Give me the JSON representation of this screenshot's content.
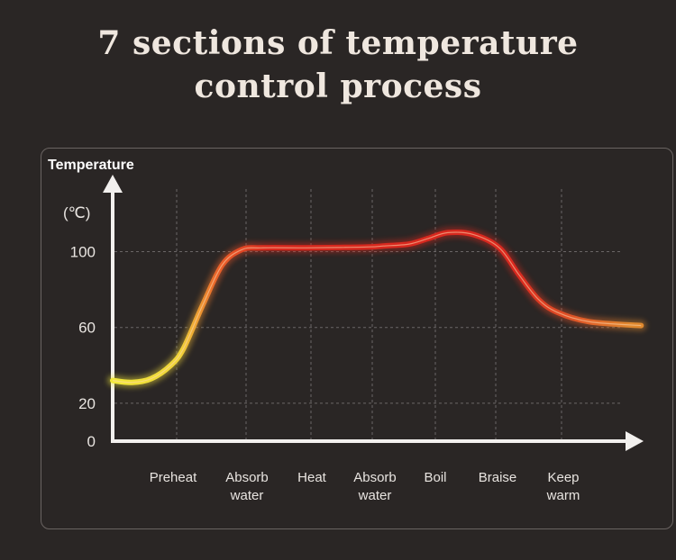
{
  "title_line1": "7 sections of temperature",
  "title_line2": "control process",
  "chart_data": {
    "type": "line",
    "ylabel": "Temperature",
    "yunit": "(℃)",
    "yticks": [
      0,
      20,
      60,
      100
    ],
    "ylim": [
      0,
      116
    ],
    "categories": [
      "Preheat",
      "Absorb water",
      "Heat",
      "Absorb water",
      "Boil",
      "Braise",
      "Keep warm"
    ],
    "category_lines": [
      [
        "Preheat"
      ],
      [
        "Absorb",
        "water"
      ],
      [
        "Heat"
      ],
      [
        "Absorb",
        "water"
      ],
      [
        "Boil"
      ],
      [
        "Braise"
      ],
      [
        "Keep",
        "warm"
      ]
    ],
    "grid": true,
    "series": [
      {
        "values": [
          [
            0,
            32
          ],
          [
            0.3,
            31
          ],
          [
            0.6,
            33
          ],
          [
            0.9,
            40
          ],
          [
            1.1,
            49
          ],
          [
            1.4,
            72
          ],
          [
            1.7,
            93
          ],
          [
            2.0,
            101
          ],
          [
            2.3,
            102
          ],
          [
            3.0,
            102
          ],
          [
            3.5,
            102.2
          ],
          [
            4.0,
            102.5
          ],
          [
            4.2,
            103
          ],
          [
            4.6,
            104
          ],
          [
            4.9,
            107
          ],
          [
            5.2,
            110
          ],
          [
            5.6,
            109
          ],
          [
            6.0,
            102
          ],
          [
            6.3,
            88
          ],
          [
            6.6,
            75
          ],
          [
            6.9,
            68
          ],
          [
            7.4,
            63
          ],
          [
            8.2,
            61
          ]
        ]
      }
    ],
    "colors": {
      "axis": "#f2f0ee",
      "grid": "#6a6666",
      "low": "#f1e93a",
      "mid": "#e9642a",
      "high": "#d8281e",
      "end": "#e0892e"
    }
  }
}
